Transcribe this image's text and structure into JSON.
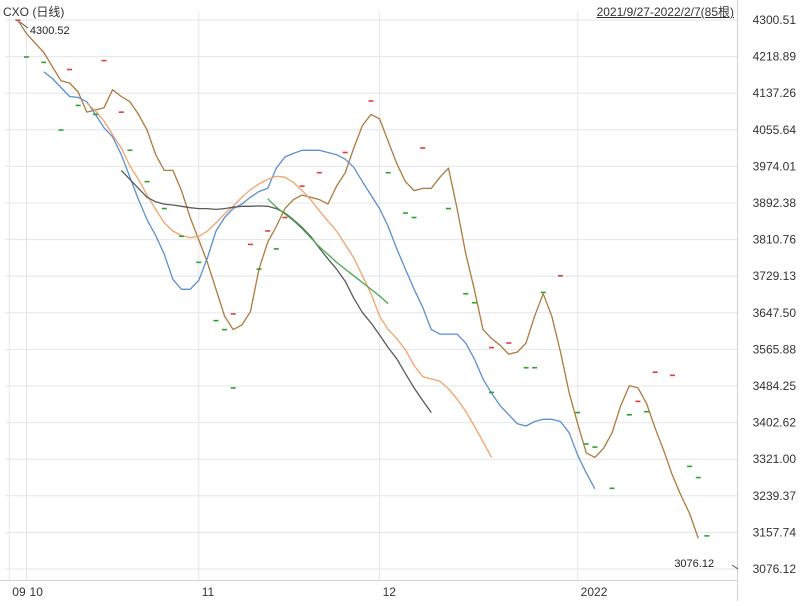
{
  "header": {
    "title": "CXO (日线)",
    "range": "2021/9/27-2022/2/7(85根)"
  },
  "colors": {
    "background": "#ffffff",
    "grid": "#e3e6ea",
    "axis_text": "#333333",
    "candle_up": "#e23b3b",
    "candle_down": "#2da32d",
    "line_brown": "#b0793a",
    "line_blue": "#5b8fd0",
    "line_orange": "#f0a36a",
    "line_dark": "#5a5a5a",
    "line_green": "#49a84c"
  },
  "chart_data": {
    "type": "line",
    "title": "CXO (日线)",
    "subtitle": "2021/9/27-2022/2/7(85根)",
    "xlabel": "",
    "ylabel": "",
    "n_bars": 85,
    "ylim": [
      3076.12,
      4300.51
    ],
    "grid": true,
    "y_ticks": [
      "4300.51",
      "4218.89",
      "4137.26",
      "4055.64",
      "3974.01",
      "3892.38",
      "3810.76",
      "3729.13",
      "3647.50",
      "3565.88",
      "3484.25",
      "3402.62",
      "3321.00",
      "3239.37",
      "3157.74",
      "3076.12"
    ],
    "x_ticks": [
      {
        "label": "09",
        "bar": 0
      },
      {
        "label": "10",
        "bar": 2
      },
      {
        "label": "11",
        "bar": 22
      },
      {
        "label": "12",
        "bar": 43
      },
      {
        "label": "2022",
        "bar": 66
      }
    ],
    "annotations": [
      {
        "label": "4300.52",
        "bar": 1,
        "value": 4300.52
      },
      {
        "label": "3076.12",
        "bar": 83,
        "value": 3076.12
      }
    ],
    "markers": {
      "up": [
        {
          "bar": 1,
          "value": 4300
        },
        {
          "bar": 7,
          "value": 4190
        },
        {
          "bar": 11,
          "value": 4210
        },
        {
          "bar": 13,
          "value": 4095
        },
        {
          "bar": 26,
          "value": 3645
        },
        {
          "bar": 28,
          "value": 3800
        },
        {
          "bar": 30,
          "value": 3830
        },
        {
          "bar": 32,
          "value": 3860
        },
        {
          "bar": 34,
          "value": 3930
        },
        {
          "bar": 36,
          "value": 3960
        },
        {
          "bar": 39,
          "value": 4005
        },
        {
          "bar": 42,
          "value": 4120
        },
        {
          "bar": 48,
          "value": 4015
        },
        {
          "bar": 56,
          "value": 3570
        },
        {
          "bar": 58,
          "value": 3580
        },
        {
          "bar": 64,
          "value": 3730
        },
        {
          "bar": 73,
          "value": 3450
        },
        {
          "bar": 75,
          "value": 3515
        },
        {
          "bar": 77,
          "value": 3508
        }
      ],
      "down": [
        {
          "bar": 2,
          "value": 4218
        },
        {
          "bar": 4,
          "value": 4206
        },
        {
          "bar": 6,
          "value": 4055
        },
        {
          "bar": 8,
          "value": 4110
        },
        {
          "bar": 10,
          "value": 4090
        },
        {
          "bar": 14,
          "value": 4010
        },
        {
          "bar": 16,
          "value": 3940
        },
        {
          "bar": 18,
          "value": 3880
        },
        {
          "bar": 20,
          "value": 3818
        },
        {
          "bar": 22,
          "value": 3760
        },
        {
          "bar": 24,
          "value": 3630
        },
        {
          "bar": 25,
          "value": 3610
        },
        {
          "bar": 26,
          "value": 3480
        },
        {
          "bar": 29,
          "value": 3745
        },
        {
          "bar": 31,
          "value": 3790
        },
        {
          "bar": 44,
          "value": 3960
        },
        {
          "bar": 46,
          "value": 3870
        },
        {
          "bar": 47,
          "value": 3860
        },
        {
          "bar": 51,
          "value": 3880
        },
        {
          "bar": 53,
          "value": 3690
        },
        {
          "bar": 54,
          "value": 3670
        },
        {
          "bar": 56,
          "value": 3470
        },
        {
          "bar": 60,
          "value": 3525
        },
        {
          "bar": 61,
          "value": 3525
        },
        {
          "bar": 62,
          "value": 3693
        },
        {
          "bar": 66,
          "value": 3425
        },
        {
          "bar": 67,
          "value": 3355
        },
        {
          "bar": 68,
          "value": 3348
        },
        {
          "bar": 70,
          "value": 3256
        },
        {
          "bar": 72,
          "value": 3420
        },
        {
          "bar": 74,
          "value": 3427
        },
        {
          "bar": 79,
          "value": 3305
        },
        {
          "bar": 80,
          "value": 3280
        },
        {
          "bar": 81,
          "value": 3150
        }
      ]
    },
    "series": [
      {
        "color": "#b0793a",
        "points": [
          [
            1,
            4300
          ],
          [
            2,
            4270
          ],
          [
            4,
            4228
          ],
          [
            6,
            4165
          ],
          [
            7,
            4160
          ],
          [
            8,
            4140
          ],
          [
            9,
            4095
          ],
          [
            11,
            4105
          ],
          [
            12,
            4145
          ],
          [
            13,
            4130
          ],
          [
            14,
            4118
          ],
          [
            15,
            4090
          ],
          [
            16,
            4055
          ],
          [
            17,
            4000
          ],
          [
            18,
            3965
          ],
          [
            19,
            3965
          ],
          [
            20,
            3920
          ],
          [
            21,
            3860
          ],
          [
            22,
            3810
          ],
          [
            23,
            3760
          ],
          [
            24,
            3700
          ],
          [
            25,
            3640
          ],
          [
            26,
            3610
          ],
          [
            27,
            3620
          ],
          [
            28,
            3650
          ],
          [
            29,
            3745
          ],
          [
            30,
            3805
          ],
          [
            31,
            3840
          ],
          [
            32,
            3880
          ],
          [
            33,
            3900
          ],
          [
            34,
            3910
          ],
          [
            35,
            3905
          ],
          [
            36,
            3900
          ],
          [
            37,
            3890
          ],
          [
            38,
            3930
          ],
          [
            39,
            3960
          ],
          [
            40,
            4015
          ],
          [
            41,
            4065
          ],
          [
            42,
            4090
          ],
          [
            43,
            4080
          ],
          [
            44,
            4030
          ],
          [
            45,
            3980
          ],
          [
            46,
            3940
          ],
          [
            47,
            3920
          ],
          [
            48,
            3925
          ],
          [
            49,
            3925
          ],
          [
            50,
            3950
          ],
          [
            51,
            3970
          ],
          [
            52,
            3880
          ],
          [
            53,
            3780
          ],
          [
            54,
            3700
          ],
          [
            55,
            3610
          ],
          [
            56,
            3590
          ],
          [
            57,
            3575
          ],
          [
            58,
            3555
          ],
          [
            59,
            3560
          ],
          [
            60,
            3580
          ],
          [
            61,
            3640
          ],
          [
            62,
            3690
          ],
          [
            63,
            3640
          ],
          [
            64,
            3560
          ],
          [
            65,
            3470
          ],
          [
            66,
            3400
          ],
          [
            67,
            3335
          ],
          [
            68,
            3325
          ],
          [
            69,
            3345
          ],
          [
            70,
            3380
          ],
          [
            71,
            3440
          ],
          [
            72,
            3485
          ],
          [
            73,
            3480
          ],
          [
            74,
            3445
          ],
          [
            75,
            3390
          ],
          [
            76,
            3340
          ],
          [
            77,
            3285
          ],
          [
            78,
            3240
          ],
          [
            79,
            3200
          ],
          [
            80,
            3145
          ]
        ]
      },
      {
        "color": "#5b8fd0",
        "points": [
          [
            4,
            4185
          ],
          [
            5,
            4170
          ],
          [
            6,
            4150
          ],
          [
            7,
            4130
          ],
          [
            8,
            4128
          ],
          [
            9,
            4118
          ],
          [
            10,
            4090
          ],
          [
            11,
            4060
          ],
          [
            12,
            4040
          ],
          [
            13,
            4000
          ],
          [
            14,
            3950
          ],
          [
            15,
            3900
          ],
          [
            16,
            3855
          ],
          [
            17,
            3820
          ],
          [
            18,
            3778
          ],
          [
            19,
            3722
          ],
          [
            20,
            3700
          ],
          [
            21,
            3700
          ],
          [
            22,
            3720
          ],
          [
            23,
            3770
          ],
          [
            24,
            3830
          ],
          [
            25,
            3860
          ],
          [
            26,
            3880
          ],
          [
            27,
            3890
          ],
          [
            28,
            3905
          ],
          [
            29,
            3918
          ],
          [
            30,
            3925
          ],
          [
            31,
            3970
          ],
          [
            32,
            3995
          ],
          [
            33,
            4003
          ],
          [
            34,
            4010
          ],
          [
            35,
            4010
          ],
          [
            36,
            4010
          ],
          [
            37,
            4005
          ],
          [
            38,
            4000
          ],
          [
            39,
            3990
          ],
          [
            40,
            3972
          ],
          [
            41,
            3940
          ],
          [
            42,
            3910
          ],
          [
            43,
            3880
          ],
          [
            44,
            3840
          ],
          [
            45,
            3790
          ],
          [
            46,
            3745
          ],
          [
            47,
            3700
          ],
          [
            48,
            3660
          ],
          [
            49,
            3610
          ],
          [
            50,
            3600
          ],
          [
            51,
            3600
          ],
          [
            52,
            3600
          ],
          [
            53,
            3580
          ],
          [
            54,
            3545
          ],
          [
            55,
            3500
          ],
          [
            56,
            3468
          ],
          [
            57,
            3440
          ],
          [
            58,
            3420
          ],
          [
            59,
            3400
          ],
          [
            60,
            3395
          ],
          [
            61,
            3405
          ],
          [
            62,
            3410
          ],
          [
            63,
            3410
          ],
          [
            64,
            3405
          ],
          [
            65,
            3380
          ],
          [
            66,
            3330
          ],
          [
            67,
            3290
          ],
          [
            68,
            3255
          ]
        ]
      },
      {
        "color": "#f0a36a",
        "points": [
          [
            9,
            4115
          ],
          [
            10,
            4098
          ],
          [
            11,
            4075
          ],
          [
            12,
            4045
          ],
          [
            13,
            4015
          ],
          [
            14,
            3975
          ],
          [
            15,
            3945
          ],
          [
            16,
            3910
          ],
          [
            17,
            3878
          ],
          [
            18,
            3848
          ],
          [
            19,
            3830
          ],
          [
            20,
            3820
          ],
          [
            21,
            3815
          ],
          [
            22,
            3818
          ],
          [
            23,
            3830
          ],
          [
            24,
            3848
          ],
          [
            25,
            3868
          ],
          [
            26,
            3885
          ],
          [
            27,
            3905
          ],
          [
            28,
            3922
          ],
          [
            29,
            3935
          ],
          [
            30,
            3945
          ],
          [
            31,
            3952
          ],
          [
            32,
            3950
          ],
          [
            33,
            3938
          ],
          [
            34,
            3920
          ],
          [
            35,
            3900
          ],
          [
            36,
            3875
          ],
          [
            37,
            3852
          ],
          [
            38,
            3830
          ],
          [
            39,
            3800
          ],
          [
            40,
            3770
          ],
          [
            41,
            3730
          ],
          [
            42,
            3690
          ],
          [
            43,
            3640
          ],
          [
            44,
            3610
          ],
          [
            45,
            3590
          ],
          [
            46,
            3565
          ],
          [
            47,
            3530
          ],
          [
            48,
            3505
          ],
          [
            49,
            3500
          ],
          [
            50,
            3495
          ],
          [
            51,
            3478
          ],
          [
            52,
            3455
          ],
          [
            53,
            3428
          ],
          [
            54,
            3395
          ],
          [
            55,
            3360
          ],
          [
            56,
            3325
          ]
        ]
      },
      {
        "color": "#5a5a5a",
        "points": [
          [
            13,
            3965
          ],
          [
            14,
            3945
          ],
          [
            15,
            3925
          ],
          [
            16,
            3905
          ],
          [
            17,
            3895
          ],
          [
            18,
            3890
          ],
          [
            19,
            3888
          ],
          [
            20,
            3885
          ],
          [
            21,
            3882
          ],
          [
            22,
            3880
          ],
          [
            23,
            3880
          ],
          [
            24,
            3878
          ],
          [
            25,
            3880
          ],
          [
            26,
            3883
          ],
          [
            27,
            3885
          ],
          [
            28,
            3885
          ],
          [
            29,
            3886
          ],
          [
            30,
            3885
          ],
          [
            31,
            3880
          ],
          [
            32,
            3870
          ],
          [
            33,
            3855
          ],
          [
            34,
            3838
          ],
          [
            35,
            3818
          ],
          [
            36,
            3792
          ],
          [
            37,
            3768
          ],
          [
            38,
            3745
          ],
          [
            39,
            3718
          ],
          [
            40,
            3680
          ],
          [
            41,
            3648
          ],
          [
            42,
            3625
          ],
          [
            43,
            3598
          ],
          [
            44,
            3570
          ],
          [
            45,
            3545
          ],
          [
            46,
            3512
          ],
          [
            47,
            3480
          ],
          [
            48,
            3452
          ],
          [
            49,
            3425
          ]
        ]
      },
      {
        "color": "#49a84c",
        "points": [
          [
            30,
            3902
          ],
          [
            31,
            3883
          ],
          [
            32,
            3868
          ],
          [
            33,
            3853
          ],
          [
            34,
            3835
          ],
          [
            35,
            3815
          ],
          [
            36,
            3795
          ],
          [
            37,
            3778
          ],
          [
            38,
            3760
          ],
          [
            39,
            3745
          ],
          [
            40,
            3730
          ],
          [
            41,
            3715
          ],
          [
            42,
            3700
          ],
          [
            43,
            3685
          ],
          [
            44,
            3668
          ]
        ]
      }
    ]
  }
}
